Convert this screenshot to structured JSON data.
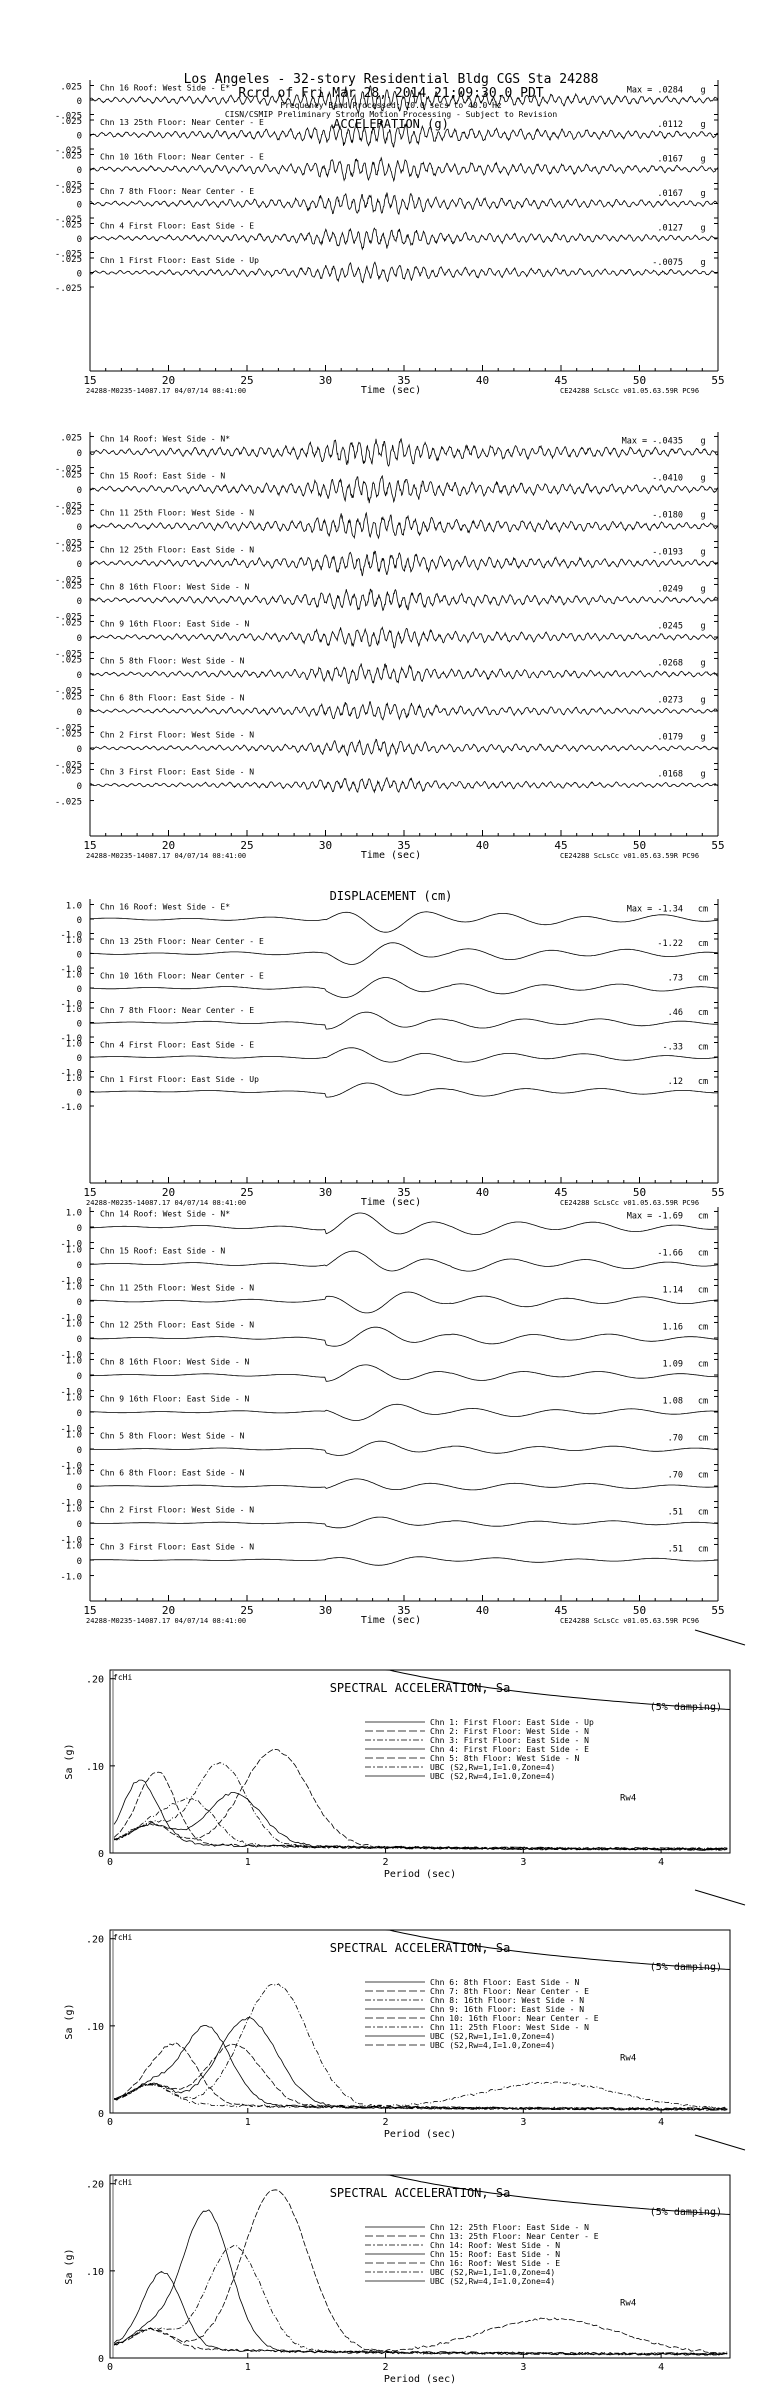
{
  "header": {
    "line1": "Los Angeles - 32-story Residential Bldg     CGS Sta 24288",
    "line2": "Rcrd of Fri Mar 28, 2014 21:09:30.0 PDT",
    "line3": "Frequency Band Processed: 10.0 secs to 40.0 Hz",
    "line4": "CISN/CSMIP Preliminary Strong Motion Processing - Subject to Revision"
  },
  "footer": {
    "left": "24288-M0235-14087.17 04/07/14 08:41:00",
    "right": "CE24288  ScLsCc  v01.05.63.59R PC96"
  },
  "chart_data": [
    {
      "type": "line",
      "title": "ACCELERATION (g)",
      "xlabel": "Time (sec)",
      "xlim": [
        15,
        55
      ],
      "xticks": [
        "15",
        "20",
        "25",
        "30",
        "35",
        "40",
        "45",
        "50",
        "55"
      ],
      "unit": "g",
      "ytick_top": ".025",
      "ytick_mid": "0",
      "ytick_bot": "-.025",
      "series": [
        {
          "name": "Chn 16  Roof: West Side - E*",
          "peak": ".0284",
          "prefix": "Max = "
        },
        {
          "name": "Chn 13  25th Floor: Near Center - E",
          "peak": ".0112"
        },
        {
          "name": "Chn 10  16th Floor: Near Center - E",
          "peak": ".0167"
        },
        {
          "name": "Chn 7  8th Floor: Near Center - E",
          "peak": ".0167"
        },
        {
          "name": "Chn 4  First Floor: East Side - E",
          "peak": ".0127"
        },
        {
          "name": "Chn 1  First Floor: East Side - Up",
          "peak": "-.0075"
        }
      ]
    },
    {
      "type": "line",
      "title": "",
      "xlabel": "Time (sec)",
      "xlim": [
        15,
        55
      ],
      "xticks": [
        "15",
        "20",
        "25",
        "30",
        "35",
        "40",
        "45",
        "50",
        "55"
      ],
      "unit": "g",
      "ytick_top": ".025",
      "ytick_mid": "0",
      "ytick_bot": "-.025",
      "series": [
        {
          "name": "Chn 14  Roof: West Side - N*",
          "peak": "-.0435",
          "prefix": "Max = "
        },
        {
          "name": "Chn 15  Roof: East Side - N",
          "peak": "-.0410"
        },
        {
          "name": "Chn 11  25th Floor: West Side - N",
          "peak": "-.0180"
        },
        {
          "name": "Chn 12  25th Floor: East Side - N",
          "peak": "-.0193"
        },
        {
          "name": "Chn 8  16th Floor: West Side - N",
          "peak": ".0249"
        },
        {
          "name": "Chn 9  16th Floor: East Side - N",
          "peak": ".0245"
        },
        {
          "name": "Chn 5  8th Floor: West Side - N",
          "peak": ".0268"
        },
        {
          "name": "Chn 6  8th Floor: East Side - N",
          "peak": ".0273"
        },
        {
          "name": "Chn 2  First Floor: West Side - N",
          "peak": ".0179"
        },
        {
          "name": "Chn 3  First Floor: East Side - N",
          "peak": ".0168"
        }
      ]
    },
    {
      "type": "line",
      "title": "DISPLACEMENT (cm)",
      "xlabel": "Time (sec)",
      "xlim": [
        15,
        55
      ],
      "xticks": [
        "15",
        "20",
        "25",
        "30",
        "35",
        "40",
        "45",
        "50",
        "55"
      ],
      "unit": "cm",
      "ytick_top": "1.0",
      "ytick_mid": "0",
      "ytick_bot": "-1.0",
      "series": [
        {
          "name": "Chn 16  Roof: West Side - E*",
          "peak": "-1.34",
          "prefix": "Max = "
        },
        {
          "name": "Chn 13  25th Floor: Near Center - E",
          "peak": "-1.22"
        },
        {
          "name": "Chn 10  16th Floor: Near Center - E",
          "peak": ".73"
        },
        {
          "name": "Chn 7  8th Floor: Near Center - E",
          "peak": ".46"
        },
        {
          "name": "Chn 4  First Floor: East Side - E",
          "peak": "-.33"
        },
        {
          "name": "Chn 1  First Floor: East Side - Up",
          "peak": ".12"
        }
      ]
    },
    {
      "type": "line",
      "title": "",
      "xlabel": "Time (sec)",
      "xlim": [
        15,
        55
      ],
      "xticks": [
        "15",
        "20",
        "25",
        "30",
        "35",
        "40",
        "45",
        "50",
        "55"
      ],
      "unit": "cm",
      "ytick_top": "1.0",
      "ytick_mid": "0",
      "ytick_bot": "-1.0",
      "series": [
        {
          "name": "Chn 14  Roof: West Side - N*",
          "peak": "-1.69",
          "prefix": "Max = "
        },
        {
          "name": "Chn 15  Roof: East Side - N",
          "peak": "-1.66"
        },
        {
          "name": "Chn 11  25th Floor: West Side - N",
          "peak": "1.14"
        },
        {
          "name": "Chn 12  25th Floor: East Side - N",
          "peak": "1.16"
        },
        {
          "name": "Chn 8  16th Floor: West Side - N",
          "peak": "1.09"
        },
        {
          "name": "Chn 9  16th Floor: East Side - N",
          "peak": "1.08"
        },
        {
          "name": "Chn 5  8th Floor: West Side - N",
          "peak": ".70"
        },
        {
          "name": "Chn 6  8th Floor: East Side - N",
          "peak": ".70"
        },
        {
          "name": "Chn 2  First Floor: West Side - N",
          "peak": ".51"
        },
        {
          "name": "Chn 3  First Floor: East Side - N",
          "peak": ".51"
        }
      ]
    },
    {
      "type": "line",
      "title": "SPECTRAL ACCELERATION, Sa",
      "xlabel": "Period (sec)",
      "ylabel": "Sa (g)",
      "xlim": [
        0,
        4.5
      ],
      "ylim": [
        0,
        0.21
      ],
      "xticks": [
        "0",
        "1",
        "2",
        "3",
        "4"
      ],
      "yticks": [
        ".20",
        ".10",
        "0"
      ],
      "damping": "(5% damping)",
      "fchi": "fcHi",
      "rw_label": "Rw4",
      "legend": [
        "Chn 1: First Floor: East Side - Up",
        "Chn 2: First Floor: West Side - N",
        "Chn 3: First Floor: East Side - N",
        "Chn 4: First Floor: East Side - E",
        "Chn 5: 8th Floor: West Side - N",
        "UBC (S2,Rw=1,I=1.0,Zone=4)",
        "UBC (S2,Rw=4,I=1.0,Zone=4)"
      ],
      "peaks": [
        [
          0.2,
          0.055
        ],
        [
          0.35,
          0.062
        ],
        [
          0.6,
          0.05
        ],
        [
          0.9,
          0.06
        ],
        [
          1.2,
          0.11
        ],
        [
          0.8,
          0.095
        ]
      ]
    },
    {
      "type": "line",
      "title": "SPECTRAL ACCELERATION, Sa",
      "xlabel": "Period (sec)",
      "ylabel": "Sa (g)",
      "xlim": [
        0,
        4.5
      ],
      "ylim": [
        0,
        0.21
      ],
      "xticks": [
        "0",
        "1",
        "2",
        "3",
        "4"
      ],
      "yticks": [
        ".20",
        ".10",
        "0"
      ],
      "damping": "(5% damping)",
      "fchi": "fcHi",
      "rw_label": "Rw4",
      "legend": [
        "Chn 6: 8th Floor: East Side - N",
        "Chn 7: 8th Floor: Near Center - E",
        "Chn 8: 16th Floor: West Side - N",
        "Chn 9: 16th Floor: East Side - N",
        "Chn 10: 16th Floor: Near Center - E",
        "Chn 11: 25th Floor: West Side - N",
        "UBC (S2,Rw=1,I=1.0,Zone=4)",
        "UBC (S2,Rw=4,I=1.0,Zone=4)"
      ],
      "peaks": [
        [
          0.7,
          0.09
        ],
        [
          0.9,
          0.07
        ],
        [
          1.2,
          0.14
        ],
        [
          1.0,
          0.1
        ],
        [
          0.5,
          0.06
        ],
        [
          3.2,
          0.03
        ]
      ]
    },
    {
      "type": "line",
      "title": "SPECTRAL ACCELERATION, Sa",
      "xlabel": "Period (sec)",
      "ylabel": "Sa (g)",
      "xlim": [
        0,
        4.5
      ],
      "ylim": [
        0,
        0.21
      ],
      "xticks": [
        "0",
        "1",
        "2",
        "3",
        "4"
      ],
      "yticks": [
        ".20",
        ".10",
        "0"
      ],
      "damping": "(5% damping)",
      "fchi": "fcHi",
      "rw_label": "Rw4",
      "legend": [
        "Chn 12: 25th Floor: East Side - N",
        "Chn 13: 25th Floor: Near Center - E",
        "Chn 14: Roof: West Side - N",
        "Chn 15: Roof: East Side - N",
        "Chn 16: Roof: West Side - E",
        "UBC (S2,Rw=1,I=1.0,Zone=4)",
        "UBC (S2,Rw=4,I=1.0,Zone=4)"
      ],
      "peaks": [
        [
          0.7,
          0.16
        ],
        [
          1.2,
          0.185
        ],
        [
          0.9,
          0.12
        ],
        [
          0.4,
          0.07
        ],
        [
          3.2,
          0.04
        ]
      ]
    }
  ]
}
